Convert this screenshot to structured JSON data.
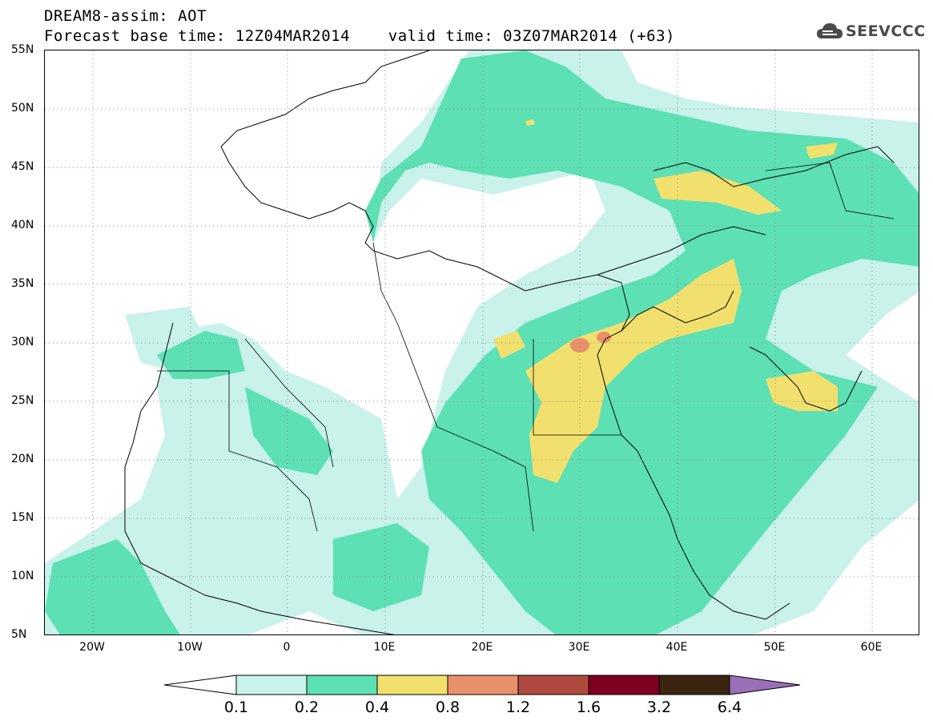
{
  "header": {
    "title_line_1": "DREAM8-assim: AOT",
    "title_line_2": "Forecast base time: 12Z04MAR2014    valid time: 03Z07MAR2014 (+63)",
    "logo_text": "SEEVCCC",
    "logo_icon": "cloud-icon"
  },
  "map": {
    "lat_labels": [
      "55N",
      "50N",
      "45N",
      "40N",
      "35N",
      "30N",
      "25N",
      "20N",
      "15N",
      "10N",
      "5N"
    ],
    "lon_labels": [
      "20W",
      "10W",
      "0",
      "10E",
      "20E",
      "30E",
      "40E",
      "50E",
      "60E"
    ],
    "grid": "dotted"
  },
  "colorbar": {
    "labels": [
      "0.1",
      "0.2",
      "0.4",
      "0.8",
      "1.2",
      "1.6",
      "3.2",
      "6.4"
    ],
    "colors": [
      "#ffffff",
      "#c8f2ea",
      "#5ce0b4",
      "#f2e06e",
      "#e8906a",
      "#b04a3e",
      "#800020",
      "#3a2410",
      "#9b6fb8"
    ]
  }
}
